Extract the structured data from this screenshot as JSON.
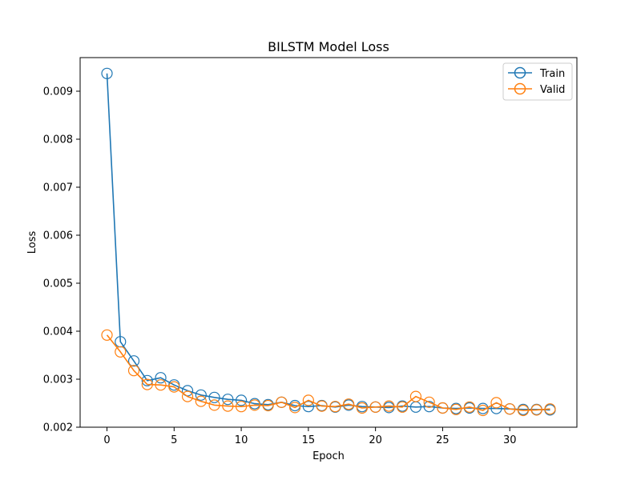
{
  "chart_data": {
    "type": "line",
    "title": "BILSTM Model Loss",
    "xlabel": "Epoch",
    "ylabel": "Loss",
    "xlim": [
      -2,
      35
    ],
    "ylim": [
      0.002,
      0.0097
    ],
    "xticks": [
      0,
      5,
      10,
      15,
      20,
      25,
      30
    ],
    "yticks": [
      0.002,
      0.003,
      0.004,
      0.005,
      0.006,
      0.007,
      0.008,
      0.009
    ],
    "ytick_labels": [
      "0.002",
      "0.003",
      "0.004",
      "0.005",
      "0.006",
      "0.007",
      "0.008",
      "0.009"
    ],
    "grid": false,
    "legend_position": "top-right",
    "x": [
      0,
      1,
      2,
      3,
      4,
      5,
      6,
      7,
      8,
      9,
      10,
      11,
      12,
      13,
      14,
      15,
      16,
      17,
      18,
      19,
      20,
      21,
      22,
      23,
      24,
      25,
      26,
      27,
      28,
      29,
      30,
      31,
      32,
      33
    ],
    "series": [
      {
        "name": "Train",
        "color": "#1f77b4",
        "values": [
          0.00937,
          0.00378,
          0.00338,
          0.00297,
          0.00303,
          0.00288,
          0.00276,
          0.00267,
          0.00262,
          0.00258,
          0.00256,
          0.00249,
          0.00247,
          0.00252,
          0.00245,
          0.00243,
          0.00245,
          0.00242,
          0.00246,
          0.00243,
          0.00242,
          0.00241,
          0.00244,
          0.00242,
          0.00243,
          0.0024,
          0.00239,
          0.0024,
          0.00239,
          0.00239,
          0.00238,
          0.00237,
          0.00237,
          0.00236
        ]
      },
      {
        "name": "Valid",
        "color": "#ff7f0e",
        "values": [
          0.00392,
          0.00357,
          0.00318,
          0.00289,
          0.00288,
          0.00284,
          0.00264,
          0.00254,
          0.00246,
          0.00244,
          0.00243,
          0.00246,
          0.00245,
          0.00252,
          0.00241,
          0.00256,
          0.00244,
          0.00243,
          0.00248,
          0.0024,
          0.00242,
          0.00244,
          0.00242,
          0.00264,
          0.00252,
          0.0024,
          0.00237,
          0.00242,
          0.00235,
          0.00251,
          0.00238,
          0.00235,
          0.00236,
          0.00238
        ]
      }
    ]
  }
}
